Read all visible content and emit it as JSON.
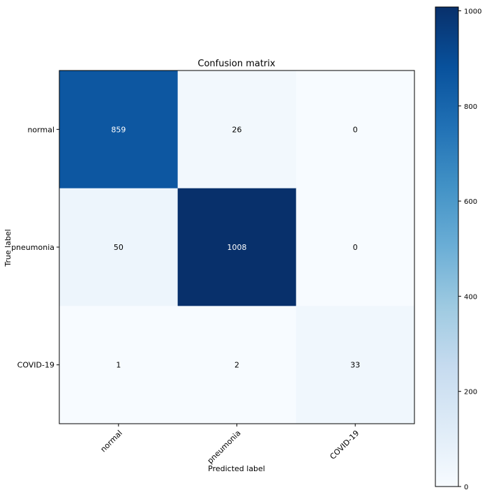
{
  "chart_data": {
    "type": "heatmap",
    "title": "Confusion matrix",
    "xlabel": "Predicted label",
    "ylabel": "True label",
    "x_categories": [
      "normal",
      "pneumonia",
      "COVID-19"
    ],
    "y_categories": [
      "normal",
      "pneumonia",
      "COVID-19"
    ],
    "values": [
      [
        859,
        26,
        0
      ],
      [
        50,
        1008,
        0
      ],
      [
        1,
        2,
        33
      ]
    ],
    "colormap": "Blues",
    "colorbar": {
      "min": 0,
      "max": 1008,
      "ticks": [
        0,
        200,
        400,
        600,
        800,
        1000
      ]
    },
    "text_color_dark": "#000000",
    "text_color_light": "#ffffff"
  }
}
